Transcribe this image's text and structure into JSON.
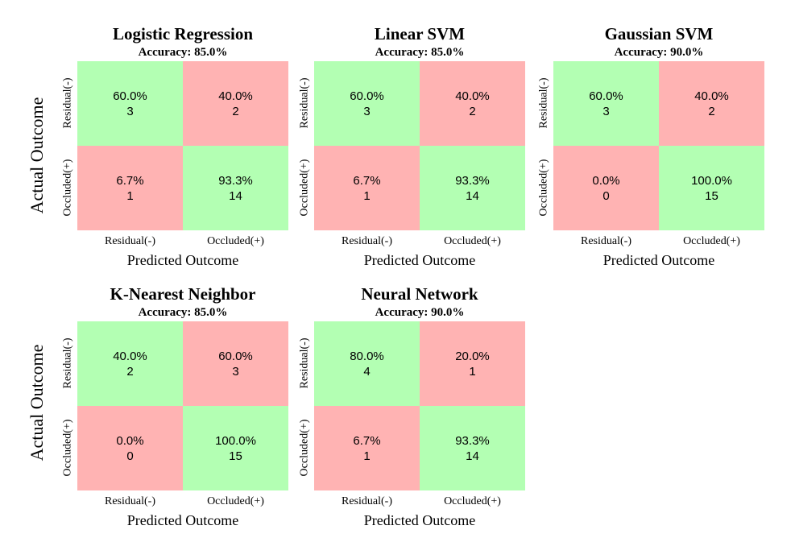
{
  "figure": {
    "ylabel_top": "Actual Outcome",
    "ylabel_bottom": "Actual Outcome"
  },
  "chart_data": [
    {
      "type": "heatmap",
      "title": "Logistic Regression",
      "subtitle": "Accuracy: 85.0%",
      "xlabel": "Predicted Outcome",
      "row_labels": [
        "Residual(-)",
        "Occluded(+)"
      ],
      "col_labels": [
        "Residual(-)",
        "Occluded(+)"
      ],
      "cells": [
        [
          {
            "pct": "60.0%",
            "count": "3",
            "correct": true
          },
          {
            "pct": "40.0%",
            "count": "2",
            "correct": false
          }
        ],
        [
          {
            "pct": "6.7%",
            "count": "1",
            "correct": false
          },
          {
            "pct": "93.3%",
            "count": "14",
            "correct": true
          }
        ]
      ]
    },
    {
      "type": "heatmap",
      "title": "Linear SVM",
      "subtitle": "Accuracy: 85.0%",
      "xlabel": "Predicted Outcome",
      "row_labels": [
        "Residual(-)",
        "Occluded(+)"
      ],
      "col_labels": [
        "Residual(-)",
        "Occluded(+)"
      ],
      "cells": [
        [
          {
            "pct": "60.0%",
            "count": "3",
            "correct": true
          },
          {
            "pct": "40.0%",
            "count": "2",
            "correct": false
          }
        ],
        [
          {
            "pct": "6.7%",
            "count": "1",
            "correct": false
          },
          {
            "pct": "93.3%",
            "count": "14",
            "correct": true
          }
        ]
      ]
    },
    {
      "type": "heatmap",
      "title": "Gaussian SVM",
      "subtitle": "Accuracy: 90.0%",
      "xlabel": "Predicted Outcome",
      "row_labels": [
        "Residual(-)",
        "Occluded(+)"
      ],
      "col_labels": [
        "Residual(-)",
        "Occluded(+)"
      ],
      "cells": [
        [
          {
            "pct": "60.0%",
            "count": "3",
            "correct": true
          },
          {
            "pct": "40.0%",
            "count": "2",
            "correct": false
          }
        ],
        [
          {
            "pct": "0.0%",
            "count": "0",
            "correct": false
          },
          {
            "pct": "100.0%",
            "count": "15",
            "correct": true
          }
        ]
      ]
    },
    {
      "type": "heatmap",
      "title": "K-Nearest Neighbor",
      "subtitle": "Accuracy: 85.0%",
      "xlabel": "Predicted Outcome",
      "row_labels": [
        "Residual(-)",
        "Occluded(+)"
      ],
      "col_labels": [
        "Residual(-)",
        "Occluded(+)"
      ],
      "cells": [
        [
          {
            "pct": "40.0%",
            "count": "2",
            "correct": true
          },
          {
            "pct": "60.0%",
            "count": "3",
            "correct": false
          }
        ],
        [
          {
            "pct": "0.0%",
            "count": "0",
            "correct": false
          },
          {
            "pct": "100.0%",
            "count": "15",
            "correct": true
          }
        ]
      ]
    },
    {
      "type": "heatmap",
      "title": "Neural Network",
      "subtitle": "Accuracy: 90.0%",
      "xlabel": "Predicted Outcome",
      "row_labels": [
        "Residual(-)",
        "Occluded(+)"
      ],
      "col_labels": [
        "Residual(-)",
        "Occluded(+)"
      ],
      "cells": [
        [
          {
            "pct": "80.0%",
            "count": "4",
            "correct": true
          },
          {
            "pct": "20.0%",
            "count": "1",
            "correct": false
          }
        ],
        [
          {
            "pct": "6.7%",
            "count": "1",
            "correct": false
          },
          {
            "pct": "93.3%",
            "count": "14",
            "correct": true
          }
        ]
      ]
    }
  ],
  "colors": {
    "correct": "#b3ffb3",
    "wrong": "#ffb3b3"
  }
}
